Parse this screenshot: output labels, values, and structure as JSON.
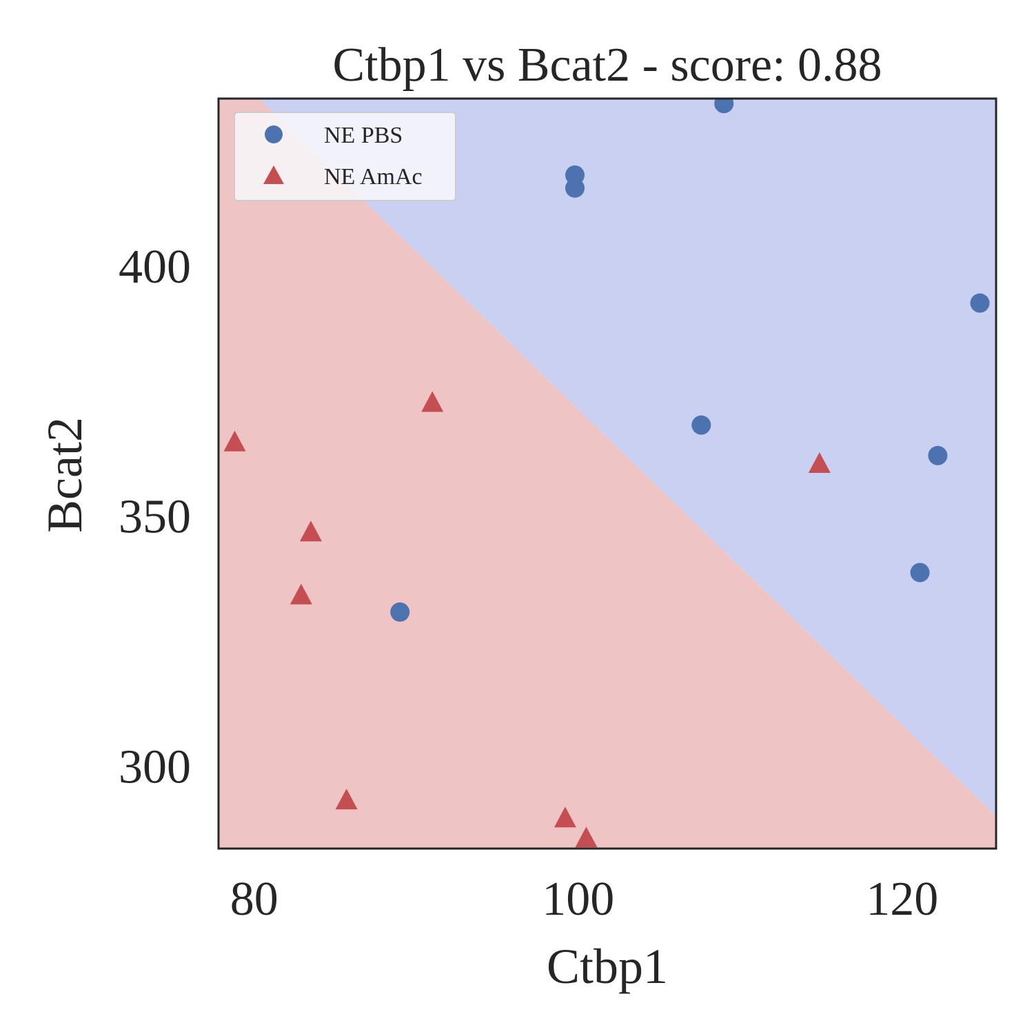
{
  "chart_data": {
    "type": "scatter",
    "title": "Ctbp1 vs Bcat2 - score: 0.88",
    "xlabel": "Ctbp1",
    "ylabel": "Bcat2",
    "xlim": [
      77.8,
      125.8
    ],
    "ylim": [
      283.5,
      433.5
    ],
    "xticks": [
      80,
      100,
      120
    ],
    "yticks": [
      300,
      350,
      400
    ],
    "grid": false,
    "legend_position": "top-left",
    "decision_boundary": {
      "description": "linear classifier regions",
      "line": [
        [
          80.3,
          433.5
        ],
        [
          125.8,
          290.0
        ]
      ],
      "region_above": "NE PBS",
      "region_below": "NE AmAc",
      "colors": {
        "NE PBS": "#c9d0f1",
        "NE AmAc": "#eec4c4"
      }
    },
    "series": [
      {
        "name": "NE PBS",
        "marker": "circle",
        "color": "#4c72b0",
        "points": [
          [
            109.0,
            432.5
          ],
          [
            99.8,
            418.2
          ],
          [
            99.8,
            415.6
          ],
          [
            124.8,
            392.6
          ],
          [
            107.6,
            368.2
          ],
          [
            122.2,
            362.1
          ],
          [
            121.1,
            338.7
          ],
          [
            89.0,
            330.8
          ]
        ]
      },
      {
        "name": "NE AmAc",
        "marker": "triangle",
        "color": "#c44e52",
        "points": [
          [
            78.8,
            364.6
          ],
          [
            91.0,
            372.5
          ],
          [
            83.5,
            346.6
          ],
          [
            82.9,
            334.0
          ],
          [
            114.9,
            360.3
          ],
          [
            85.7,
            293.0
          ],
          [
            99.2,
            289.4
          ],
          [
            100.5,
            285.4
          ]
        ]
      }
    ]
  }
}
